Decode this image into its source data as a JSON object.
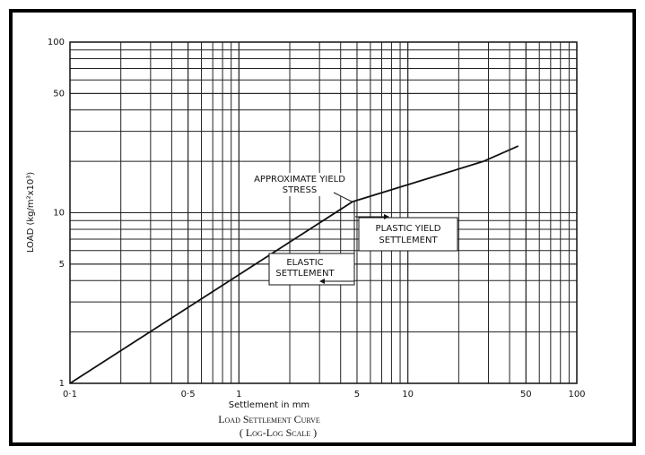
{
  "chart_data": {
    "type": "line",
    "log_x": true,
    "log_y": true,
    "grid": true,
    "xlabel": "Settlement in mm",
    "ylabel": "LOAD (kg/m²x10³)",
    "caption": [
      "Load Settlement Curve",
      "( Log-Log Scale )"
    ],
    "xlim": [
      0.1,
      100
    ],
    "ylim": [
      1,
      100
    ],
    "xticks": [
      {
        "value": 0.1,
        "label": "0·1"
      },
      {
        "value": 0.5,
        "label": "0·5"
      },
      1,
      5,
      10,
      50,
      100
    ],
    "yticks": [
      1,
      5,
      10,
      50,
      100
    ],
    "series": [
      {
        "color": "#111111",
        "x": [
          0.1,
          4.7,
          28,
          45
        ],
        "values": [
          1.0,
          11.6,
          20,
          24.6
        ]
      }
    ],
    "annotations": [
      {
        "lines": [
          "APPROXIMATE YIELD",
          "STRESS"
        ]
      },
      {
        "lines": [
          "PLASTIC YIELD",
          "SETTLEMENT"
        ]
      },
      {
        "lines": [
          "ELASTIC",
          "SETTLEMENT"
        ]
      }
    ]
  }
}
